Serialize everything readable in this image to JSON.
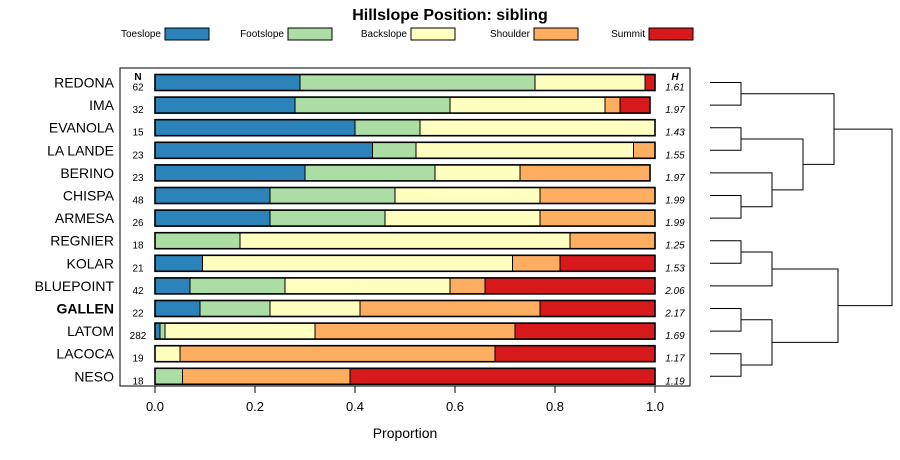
{
  "colors": {
    "Toeslope": "#2b83ba",
    "Footslope": "#abdda4",
    "Backslope": "#ffffbf",
    "Shoulder": "#fdae61",
    "Summit": "#d7191c"
  },
  "chart_data": {
    "type": "bar",
    "orientation": "horizontal-stacked",
    "title": "Hillslope Position: sibling",
    "xlabel": "Proportion",
    "ylabel": "",
    "xlim": [
      0,
      1
    ],
    "x_ticks": [
      "0.0",
      "0.2",
      "0.4",
      "0.6",
      "0.8",
      "1.0"
    ],
    "legend": [
      "Toeslope",
      "Footslope",
      "Backslope",
      "Shoulder",
      "Summit"
    ],
    "legend_position": "top",
    "column_headers": {
      "n": "N",
      "h": "H"
    },
    "highlight": "GALLEN",
    "rows": [
      {
        "name": "REDONA",
        "n": "62",
        "h": "1.61",
        "values": [
          0.29,
          0.47,
          0.22,
          0.0,
          0.02
        ]
      },
      {
        "name": "IMA",
        "n": "32",
        "h": "1.97",
        "values": [
          0.28,
          0.31,
          0.31,
          0.03,
          0.06
        ]
      },
      {
        "name": "EVANOLA",
        "n": "15",
        "h": "1.43",
        "values": [
          0.4,
          0.13,
          0.47,
          0.0,
          0.0
        ]
      },
      {
        "name": "LA LANDE",
        "n": "23",
        "h": "1.55",
        "values": [
          0.435,
          0.087,
          0.435,
          0.043,
          0.0
        ]
      },
      {
        "name": "BERINO",
        "n": "23",
        "h": "1.97",
        "values": [
          0.3,
          0.26,
          0.17,
          0.26,
          0.0
        ]
      },
      {
        "name": "CHISPA",
        "n": "48",
        "h": "1.99",
        "values": [
          0.23,
          0.25,
          0.29,
          0.23,
          0.0
        ]
      },
      {
        "name": "ARMESA",
        "n": "26",
        "h": "1.99",
        "values": [
          0.23,
          0.23,
          0.31,
          0.23,
          0.0
        ]
      },
      {
        "name": "REGNIER",
        "n": "18",
        "h": "1.25",
        "values": [
          0.0,
          0.17,
          0.66,
          0.17,
          0.0
        ]
      },
      {
        "name": "KOLAR",
        "n": "21",
        "h": "1.53",
        "values": [
          0.095,
          0.0,
          0.62,
          0.095,
          0.19
        ]
      },
      {
        "name": "BLUEPOINT",
        "n": "42",
        "h": "2.06",
        "values": [
          0.07,
          0.19,
          0.33,
          0.07,
          0.34
        ]
      },
      {
        "name": "GALLEN",
        "n": "22",
        "h": "2.17",
        "values": [
          0.09,
          0.14,
          0.18,
          0.36,
          0.23
        ]
      },
      {
        "name": "LATOM",
        "n": "282",
        "h": "1.69",
        "values": [
          0.01,
          0.01,
          0.3,
          0.4,
          0.28
        ]
      },
      {
        "name": "LACOCA",
        "n": "19",
        "h": "1.17",
        "values": [
          0.0,
          0.0,
          0.05,
          0.63,
          0.32
        ]
      },
      {
        "name": "NESO",
        "n": "18",
        "h": "1.19",
        "values": [
          0.0,
          0.055,
          0.0,
          0.335,
          0.61
        ]
      }
    ],
    "dendrogram": {
      "merges": [
        [
          "REDONA",
          "IMA"
        ],
        [
          "EVANOLA",
          "LA LANDE"
        ],
        [
          "CHISPA",
          "ARMESA"
        ],
        [
          "BERINO",
          [
            "CHISPA",
            "ARMESA"
          ]
        ],
        [
          [
            "EVANOLA",
            "LA LANDE"
          ],
          [
            "BERINO",
            [
              "CHISPA",
              "ARMESA"
            ]
          ]
        ],
        [
          [
            "REDONA",
            "IMA"
          ],
          [
            [
              "EVANOLA",
              "LA LANDE"
            ],
            [
              "BERINO",
              [
                "CHISPA",
                "ARMESA"
              ]
            ]
          ]
        ],
        [
          "REGNIER",
          "KOLAR"
        ],
        [
          [
            "REGNIER",
            "KOLAR"
          ],
          "BLUEPOINT"
        ],
        [
          "GALLEN",
          "LATOM"
        ],
        [
          "LACOCA",
          "NESO"
        ],
        [
          [
            "GALLEN",
            "LATOM"
          ],
          [
            "LACOCA",
            "NESO"
          ]
        ]
      ]
    }
  }
}
